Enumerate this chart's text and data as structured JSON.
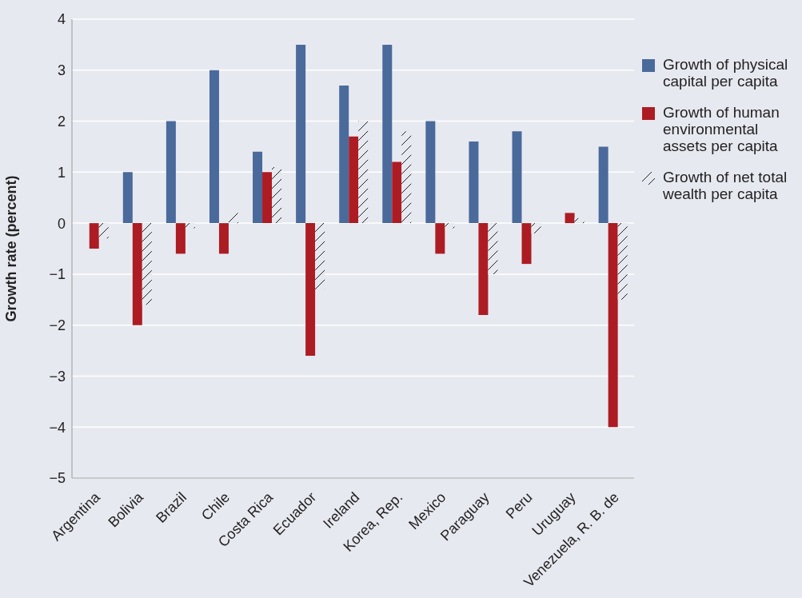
{
  "chart_data": {
    "type": "bar",
    "ylabel": "Growth rate (percent)",
    "categories": [
      "Argentina",
      "Bolivia",
      "Brazil",
      "Chile",
      "Costa Rica",
      "Ecuador",
      "Ireland",
      "Korea, Rep.",
      "Mexico",
      "Paraguay",
      "Peru",
      "Uruguay",
      "Venezuela, R. B. de"
    ],
    "series": [
      {
        "name": "Growth of physical capital per capita",
        "color": "#4a6a9b",
        "values": [
          0,
          1.0,
          2.0,
          3.0,
          1.4,
          3.5,
          2.7,
          3.5,
          2.0,
          1.6,
          1.8,
          0,
          1.5
        ]
      },
      {
        "name": "Growth of human environmental assets per capita",
        "color": "#ad1c23",
        "values": [
          -0.5,
          -2.0,
          -0.6,
          -0.6,
          1.0,
          -2.6,
          1.7,
          1.2,
          -0.6,
          -1.8,
          -0.8,
          0.2,
          -4.0
        ]
      },
      {
        "name": "Growth of net total wealth per capita",
        "color": "#222222",
        "values": [
          -0.3,
          -1.6,
          -0.1,
          0.2,
          1.1,
          -1.3,
          2.0,
          1.8,
          -0.1,
          -1.0,
          -0.2,
          0.1,
          -1.5
        ]
      }
    ],
    "ylim": [
      -5,
      4
    ],
    "yticks": [
      -5,
      -4,
      -3,
      -2,
      -1,
      0,
      1,
      2,
      3,
      4
    ],
    "grid": "y",
    "legend": "right"
  }
}
